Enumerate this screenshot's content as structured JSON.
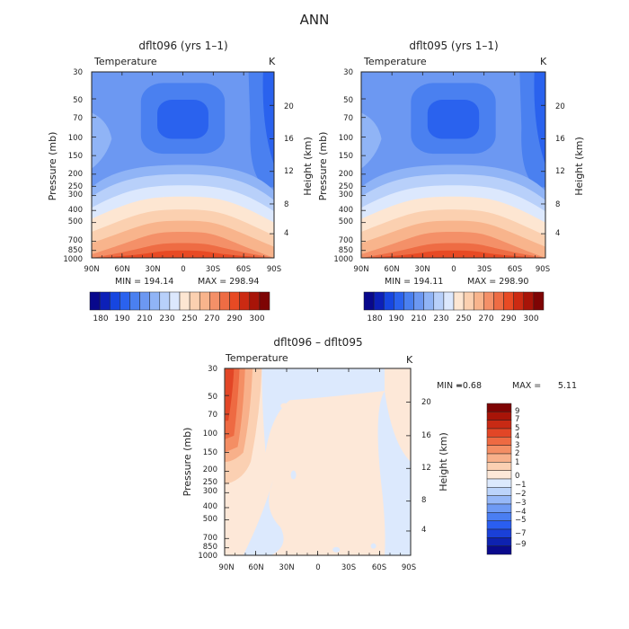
{
  "figure": {
    "title": "ANN"
  },
  "colors": {
    "temperature_scale": [
      "#08088c",
      "#0c20b8",
      "#1646e0",
      "#2a62ee",
      "#4a80f0",
      "#6c98f2",
      "#90b4f6",
      "#b8d0fa",
      "#dce8fd",
      "#fde6d2",
      "#fbd0b0",
      "#f8b48c",
      "#f49068",
      "#ee6c44",
      "#e84a24",
      "#cc2a12",
      "#a81408",
      "#7e0404"
    ],
    "difference_scale": [
      "#0a0a8c",
      "#0e22b0",
      "#1a40d8",
      "#2a5ef0",
      "#4a7ef2",
      "#6e9af4",
      "#96b8f8",
      "#bcd4fb",
      "#dce9fd",
      "#fde8d8",
      "#fbd0b2",
      "#f8b08a",
      "#f48e64",
      "#ee6a42",
      "#e24626",
      "#c82a14",
      "#a81408",
      "#7e0404"
    ]
  },
  "chart_data": [
    {
      "type": "heatmap",
      "title": "dflt096 (yrs 1–1)",
      "field_label": "Temperature",
      "units_label": "K",
      "ylabel": "Pressure (mb)",
      "y2label": "Height (km)",
      "x_ticks": [
        "90N",
        "60N",
        "30N",
        "0",
        "30S",
        "60S",
        "90S"
      ],
      "y_ticks": [
        "30",
        "50",
        "70",
        "100",
        "150",
        "200",
        "250",
        "300",
        "400",
        "500",
        "700",
        "850",
        "1000"
      ],
      "y2_ticks": [
        "20",
        "16",
        "12",
        "8",
        "4"
      ],
      "ylim": [
        1000,
        30
      ],
      "x_range": [
        90,
        -90
      ],
      "min_label": "MIN = 194.14",
      "max_label": "MAX = 298.94",
      "min": 194.14,
      "max": 298.94,
      "colorbar_labels": [
        "180",
        "190",
        "210",
        "230",
        "250",
        "270",
        "290",
        "300"
      ]
    },
    {
      "type": "heatmap",
      "title": "dflt095 (yrs 1–1)",
      "field_label": "Temperature",
      "units_label": "K",
      "ylabel": "Pressure (mb)",
      "y2label": "Height (km)",
      "x_ticks": [
        "90N",
        "60N",
        "30N",
        "0",
        "30S",
        "60S",
        "90S"
      ],
      "y_ticks": [
        "30",
        "50",
        "70",
        "100",
        "150",
        "200",
        "250",
        "300",
        "400",
        "500",
        "700",
        "850",
        "1000"
      ],
      "y2_ticks": [
        "20",
        "16",
        "12",
        "8",
        "4"
      ],
      "ylim": [
        1000,
        30
      ],
      "x_range": [
        90,
        -90
      ],
      "min_label": "MIN = 194.11",
      "max_label": "MAX = 298.90",
      "min": 194.11,
      "max": 298.9,
      "colorbar_labels": [
        "180",
        "190",
        "210",
        "230",
        "250",
        "270",
        "290",
        "300"
      ]
    },
    {
      "type": "heatmap",
      "title": "dflt096 – dflt095",
      "field_label": "Temperature",
      "units_label": "K",
      "ylabel": "Pressure (mb)",
      "y2label": "Height (km)",
      "x_ticks": [
        "90N",
        "60N",
        "30N",
        "0",
        "30S",
        "60S",
        "90S"
      ],
      "y_ticks": [
        "30",
        "50",
        "70",
        "100",
        "150",
        "200",
        "250",
        "300",
        "400",
        "500",
        "700",
        "850",
        "1000"
      ],
      "y2_ticks": [
        "20",
        "16",
        "12",
        "8",
        "4"
      ],
      "ylim": [
        1000,
        30
      ],
      "x_range": [
        90,
        -90
      ],
      "min_label": "MIN =",
      "min_value": "−0.68",
      "max_label": "MAX =",
      "max_value": "5.11",
      "min": -0.68,
      "max": 5.11,
      "colorbar_labels": [
        "9",
        "7",
        "5",
        "4",
        "3",
        "2",
        "1",
        "0",
        "−1",
        "−2",
        "−3",
        "−4",
        "−5",
        "−7",
        "−9"
      ]
    }
  ]
}
